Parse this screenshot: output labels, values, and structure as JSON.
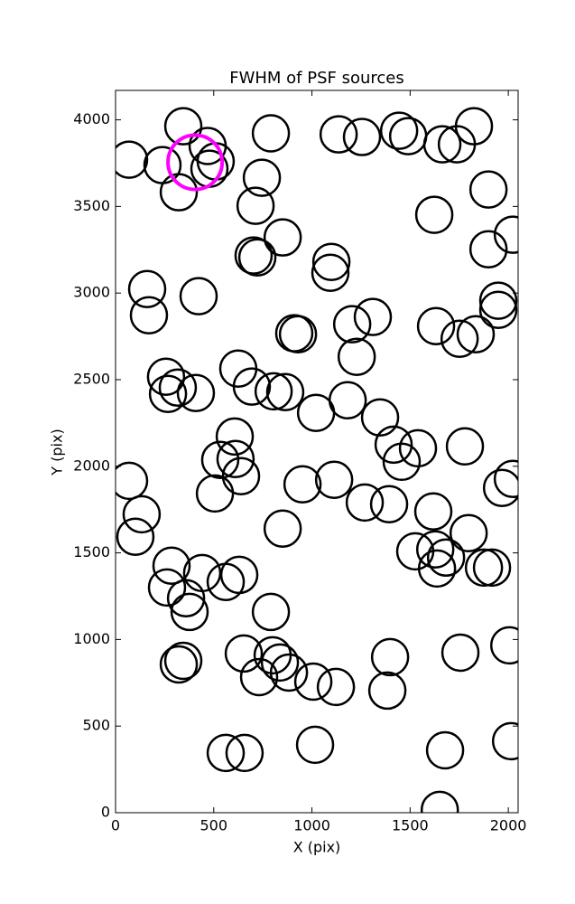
{
  "chart_data": {
    "type": "scatter",
    "title": "FWHM of PSF sources",
    "xlabel": "X (pix)",
    "ylabel": "Y (pix)",
    "xlim": [
      0,
      2050
    ],
    "ylim": [
      0,
      4170
    ],
    "xticks": [
      0,
      500,
      1000,
      1500,
      2000
    ],
    "yticks": [
      0,
      500,
      1000,
      1500,
      2000,
      2500,
      3000,
      3500,
      4000
    ],
    "series": [
      {
        "color": "#000000",
        "x": [
          69,
          345,
          239,
          322,
          469,
          478,
          510,
          791,
          745,
          713,
          851,
          703,
          722,
          1099,
          1094,
          161,
          170,
          423,
          910,
          929,
          1205,
          1310,
          1228,
          1136,
          1255,
          1444,
          1490,
          1664,
          1738,
          1825,
          1623,
          1899,
          1899,
          2023,
          1949,
          1949,
          1632,
          1752,
          1834,
          257,
          267,
          317,
          409,
          625,
          694,
          805,
          864,
          1021,
          1182,
          1347,
          1416,
          1540,
          1457,
          1779,
          607,
          533,
          611,
          639,
          506,
          69,
          133,
          101,
          851,
          952,
          1113,
          1269,
          1393,
          1618,
          1798,
          1968,
          2023,
          1526,
          1628,
          1683,
          1637,
          1876,
          1917,
          285,
          262,
          441,
          630,
          561,
          359,
          377,
          791,
          653,
          800,
          837,
          883,
          731,
          1007,
          1122,
          345,
          322,
          1398,
          1384,
          1756,
          2005,
          561,
          657,
          1016,
          1678,
          2014,
          1651
        ],
        "y": [
          3770,
          3963,
          3739,
          3582,
          3849,
          3718,
          3760,
          3922,
          3666,
          3504,
          3321,
          3217,
          3206,
          3180,
          3117,
          3023,
          2872,
          2982,
          2768,
          2762,
          2820,
          2862,
          2632,
          3916,
          3901,
          3937,
          3906,
          3859,
          3859,
          3963,
          3452,
          3598,
          3253,
          3337,
          2956,
          2903,
          2809,
          2736,
          2762,
          2517,
          2418,
          2454,
          2423,
          2564,
          2460,
          2433,
          2428,
          2308,
          2381,
          2282,
          2125,
          2104,
          2026,
          2115,
          2172,
          2037,
          2042,
          1943,
          1843,
          1916,
          1723,
          1593,
          1640,
          1896,
          1922,
          1791,
          1781,
          1739,
          1614,
          1875,
          1927,
          1509,
          1520,
          1473,
          1410,
          1415,
          1415,
          1426,
          1300,
          1384,
          1373,
          1332,
          1238,
          1159,
          1159,
          919,
          909,
          867,
          809,
          783,
          757,
          726,
          877,
          856,
          898,
          705,
          924,
          966,
          345,
          345,
          392,
          360,
          413,
          16
        ]
      },
      {
        "color": "#ff00ff",
        "x": [
          405
        ],
        "y": [
          3755
        ]
      }
    ]
  }
}
